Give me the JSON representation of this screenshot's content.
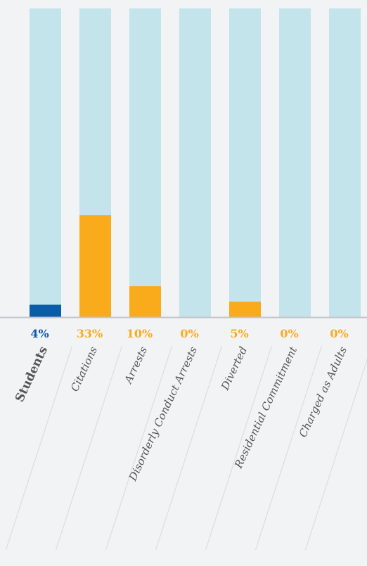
{
  "chart_data": {
    "type": "bar",
    "categories": [
      "Students",
      "Citations",
      "Arrests",
      "Disorderly Conduct Arrests",
      "Diverted",
      "Residential Commitment",
      "Charged as Adults"
    ],
    "values": [
      4,
      33,
      10,
      0,
      5,
      0,
      0
    ],
    "value_labels": [
      "4%",
      "33%",
      "10%",
      "0%",
      "5%",
      "0%",
      "0%"
    ],
    "colors": [
      "#0a5ba8",
      "#f9ab1c",
      "#f9ab1c",
      "#f9ab1c",
      "#f9ab1c",
      "#f9ab1c",
      "#f9ab1c"
    ],
    "highlight": 0,
    "ylim": [
      0,
      100
    ]
  }
}
